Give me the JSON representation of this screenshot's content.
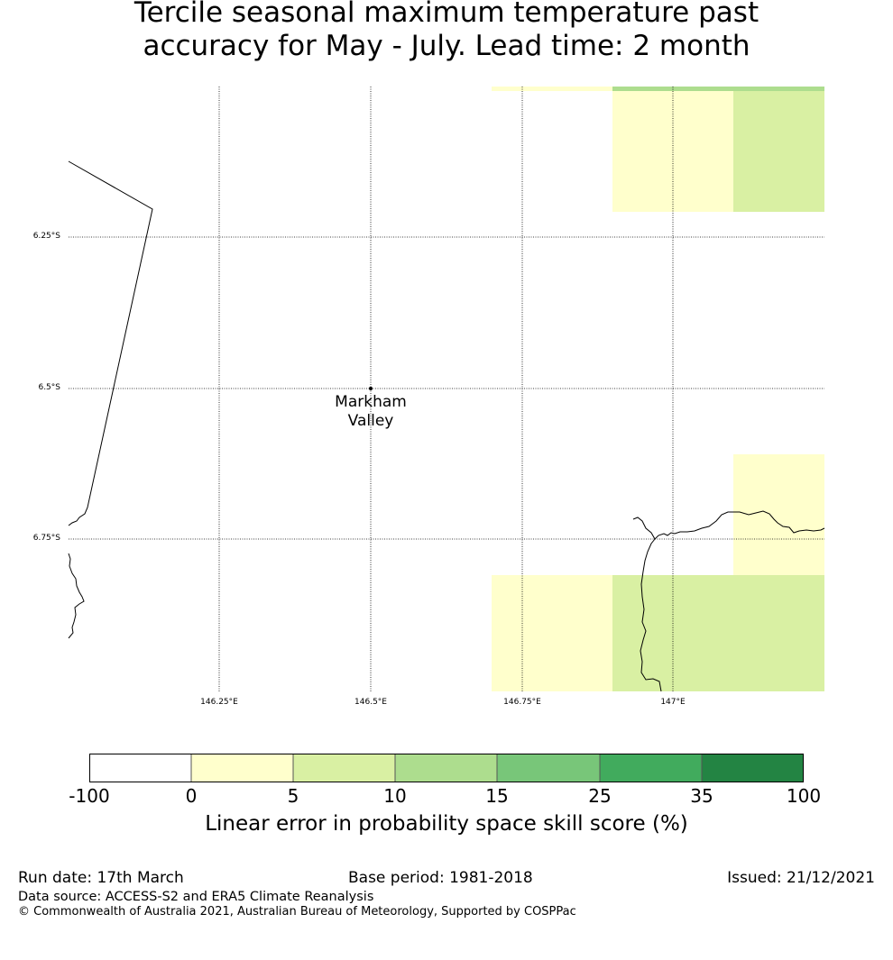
{
  "title": {
    "line1": "Tercile seasonal maximum temperature past",
    "line2": "accuracy for May - July. Lead time: 2 month"
  },
  "map": {
    "latitude_labels": [
      "6.25°S",
      "6.5°S",
      "6.75°S"
    ],
    "longitude_labels": [
      "146.25°E",
      "146.5°E",
      "146.75°E",
      "147°E"
    ],
    "place": {
      "name_line1": "Markham",
      "name_line2": "Valley",
      "lon": 146.5,
      "lat": -6.5
    },
    "skill_cells_category": [
      {
        "id": "top-strip-yellow",
        "category": "0-5"
      },
      {
        "id": "top-strip-green",
        "category": "10-15"
      },
      {
        "id": "top-yellow",
        "category": "0-5"
      },
      {
        "id": "top-lightgreen",
        "category": "5-10"
      },
      {
        "id": "right-yellow",
        "category": "0-5"
      },
      {
        "id": "bottom-yellow",
        "category": "0-5"
      },
      {
        "id": "bottom-lightgreen",
        "category": "5-10"
      }
    ]
  },
  "colorbar": {
    "ticks": [
      "-100",
      "0",
      "5",
      "10",
      "15",
      "25",
      "35",
      "100"
    ],
    "colors": [
      "#ffffff",
      "#ffffcc",
      "#d9f0a3",
      "#addd8e",
      "#78c679",
      "#41ab5d",
      "#238443"
    ],
    "label": "Linear error in probability space skill score (%)"
  },
  "footer": {
    "run_date": "Run date: 17th March",
    "base_period": "Base period: 1981-2018",
    "issued": "Issued: 21/12/2021",
    "data_source": "Data source: ACCESS-S2 and ERA5 Climate Reanalysis",
    "copyright": "© Commonwealth of Australia 2021, Australian Bureau of Meteorology, Supported by COSPPac"
  }
}
